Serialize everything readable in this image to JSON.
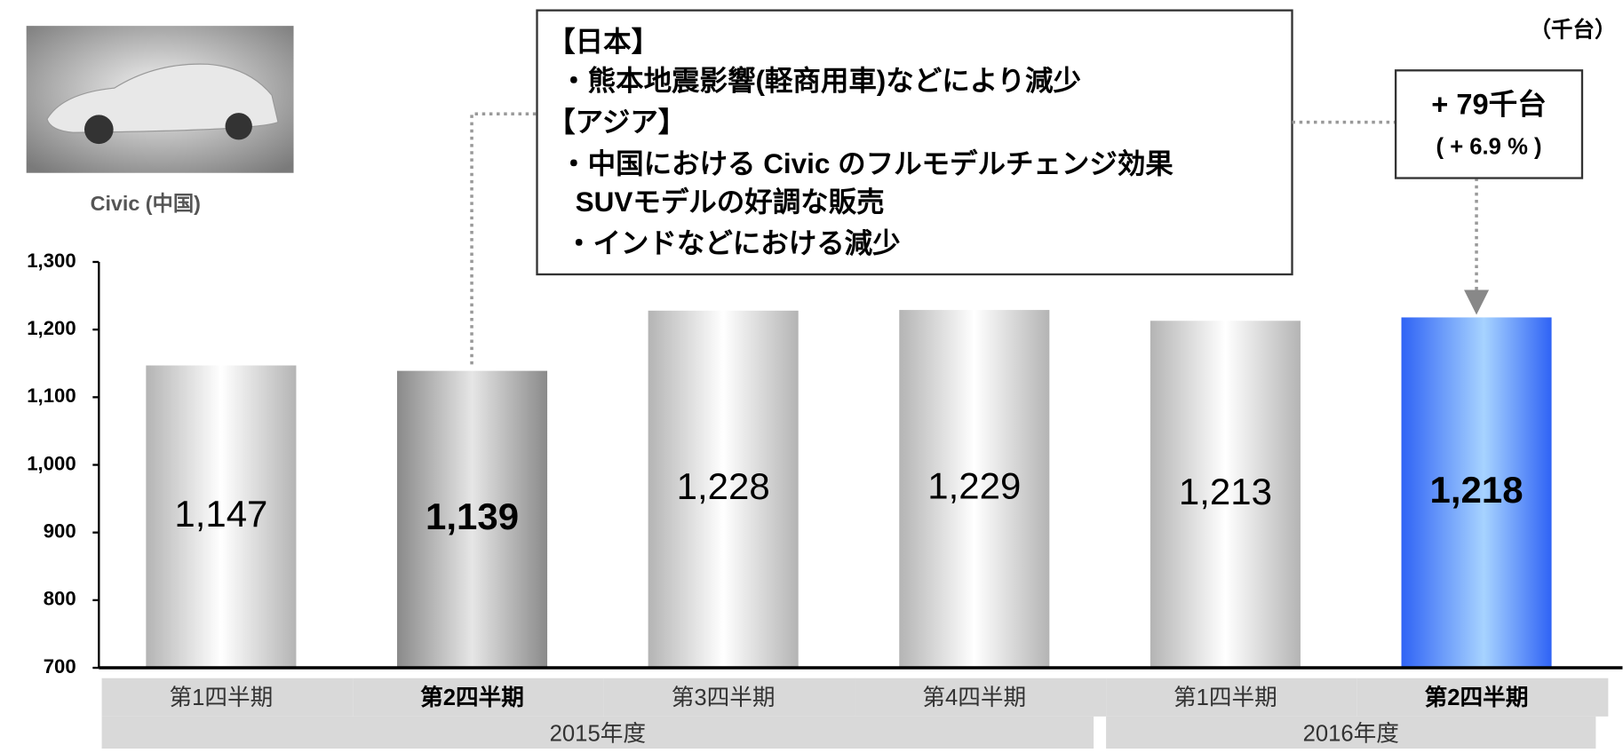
{
  "chart_data": {
    "type": "bar",
    "unit": "（千台）",
    "image_caption": "Civic (中国)",
    "ylim": [
      700,
      1300
    ],
    "yticks": [
      700,
      800,
      900,
      {
        "value": 1000,
        "label": "1,000"
      },
      {
        "value": 1100,
        "label": "1,100"
      },
      {
        "value": 1200,
        "label": "1,200"
      },
      {
        "value": 1300,
        "label": "1,300"
      }
    ],
    "groups": [
      {
        "label": "2015年度",
        "categories": [
          "第1四半期",
          "第2四半期",
          "第3四半期",
          "第4四半期"
        ],
        "values": [
          1147,
          1139,
          1228,
          1229
        ],
        "value_labels": [
          "1,147",
          "1,139",
          "1,228",
          "1,229"
        ],
        "colors": [
          "#c8c8c8",
          "#8c8c8c",
          "#c8c8c8",
          "#c8c8c8"
        ],
        "highlighted": [
          false,
          true,
          false,
          false
        ]
      },
      {
        "label": "2016年度",
        "categories": [
          "第1四半期",
          "第2四半期"
        ],
        "values": [
          1213,
          1218
        ],
        "value_labels": [
          "1,213",
          "1,218"
        ],
        "colors": [
          "#c8c8c8",
          "#3a6ff7"
        ],
        "highlighted": [
          false,
          true
        ]
      }
    ],
    "annotation": {
      "lines": [
        "【日本】",
        "・熊本地震影響(軽商用車)などにより減少",
        "【アジア】",
        "・中国における Civic のフルモデルチェンジ効果",
        "SUVモデルの好調な販売",
        "・インドなどにおける減少"
      ]
    },
    "change": {
      "label": "+ 79千台",
      "percent_label": "( + 6.9 % )"
    }
  }
}
